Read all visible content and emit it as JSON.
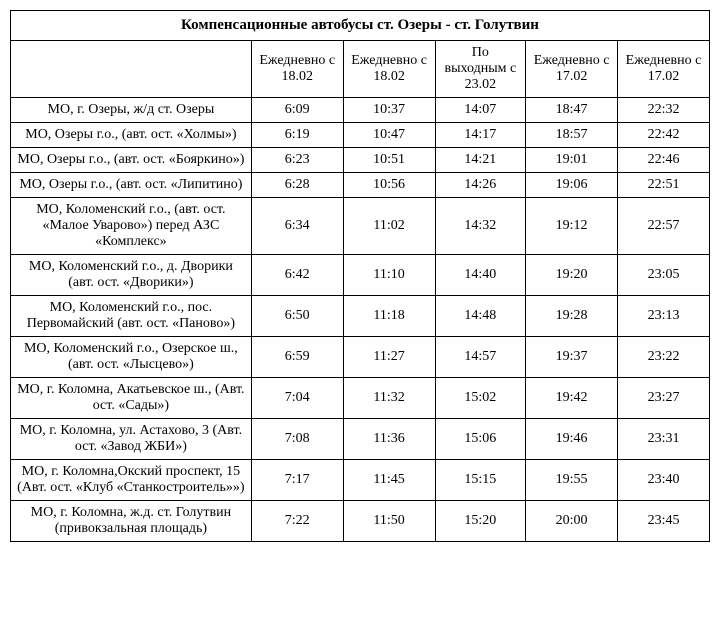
{
  "title": "Компенсационные автобусы ст. Озеры - ст. Голутвин",
  "headers": [
    "Ежедневно с 18.02",
    "Ежедневно с 18.02",
    "По выходным с 23.02",
    "Ежедневно с 17.02",
    "Ежедневно с 17.02"
  ],
  "rows": [
    {
      "stop": "МО, г. Озеры, ж/д ст. Озеры",
      "times": [
        "6:09",
        "10:37",
        "14:07",
        "18:47",
        "22:32"
      ]
    },
    {
      "stop": "МО, Озеры г.о., (авт. ост. «Холмы»)",
      "times": [
        "6:19",
        "10:47",
        "14:17",
        "18:57",
        "22:42"
      ]
    },
    {
      "stop": "МО, Озеры г.о., (авт. ост. «Бояркино»)",
      "times": [
        "6:23",
        "10:51",
        "14:21",
        "19:01",
        "22:46"
      ]
    },
    {
      "stop": "МО, Озеры г.о., (авт. ост. «Липитино)",
      "times": [
        "6:28",
        "10:56",
        "14:26",
        "19:06",
        "22:51"
      ]
    },
    {
      "stop": "МО, Коломенский г.о., (авт. ост. «Малое Уварово») перед АЗС «Комплекс»",
      "times": [
        "6:34",
        "11:02",
        "14:32",
        "19:12",
        "22:57"
      ]
    },
    {
      "stop": "МО, Коломенский г.о., д. Дворики (авт. ост. «Дворики»)",
      "times": [
        "6:42",
        "11:10",
        "14:40",
        "19:20",
        "23:05"
      ]
    },
    {
      "stop": "МО, Коломенский г.о., пос. Первомайский (авт. ост. «Паново»)",
      "times": [
        "6:50",
        "11:18",
        "14:48",
        "19:28",
        "23:13"
      ]
    },
    {
      "stop": "МО, Коломенский г.о., Озерское ш., (авт. ост. «Лысцево»)",
      "times": [
        "6:59",
        "11:27",
        "14:57",
        "19:37",
        "23:22"
      ]
    },
    {
      "stop": "МО, г. Коломна, Акатьевское ш., (Авт. ост. «Сады»)",
      "times": [
        "7:04",
        "11:32",
        "15:02",
        "19:42",
        "23:27"
      ]
    },
    {
      "stop": "МО, г. Коломна, ул. Астахово, 3 (Авт. ост. «Завод ЖБИ»)",
      "times": [
        "7:08",
        "11:36",
        "15:06",
        "19:46",
        "23:31"
      ]
    },
    {
      "stop": "МО, г. Коломна,Окский проспект, 15\n(Авт. ост. «Клуб «Станкостроитель»»)",
      "times": [
        "7:17",
        "11:45",
        "15:15",
        "19:55",
        "23:40"
      ]
    },
    {
      "stop": "МО, г. Коломна, ж.д. ст. Голутвин (привокзальная площадь)",
      "times": [
        "7:22",
        "11:50",
        "15:20",
        "20:00",
        "23:45"
      ]
    }
  ]
}
